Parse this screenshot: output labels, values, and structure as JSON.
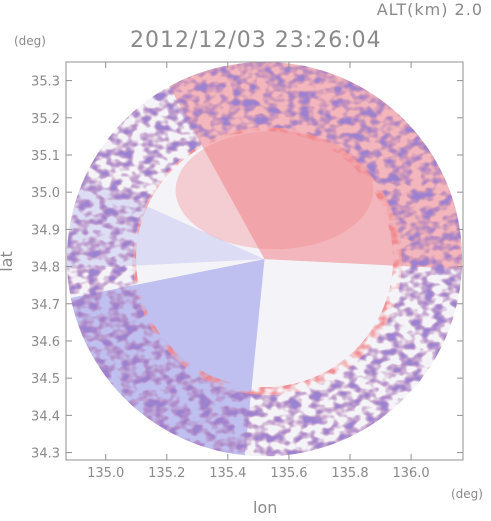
{
  "header": {
    "altitude_label": "ALT(km)  2.0",
    "timestamp": "2012/12/03 23:26:04"
  },
  "chart_data": {
    "type": "heatmap",
    "title": "2012/12/03 23:26:04",
    "subtitle": "ALT(km)  2.0",
    "xlabel": "lon",
    "ylabel": "lat",
    "x_unit": "(deg)",
    "y_unit": "(deg)",
    "xlim": [
      134.87,
      136.17
    ],
    "ylim": [
      34.28,
      35.35
    ],
    "x_ticks": [
      135.0,
      135.2,
      135.4,
      135.6,
      135.8,
      136.0
    ],
    "x_tick_labels": [
      "135.0",
      "135.2",
      "135.4",
      "135.6",
      "135.8",
      "136.0"
    ],
    "y_ticks": [
      34.3,
      34.4,
      34.5,
      34.6,
      34.7,
      34.8,
      34.9,
      35.0,
      35.1,
      35.2,
      35.3
    ],
    "y_tick_labels": [
      "34.3",
      "34.4",
      "34.5",
      "34.6",
      "34.7",
      "34.8",
      "34.9",
      "35.0",
      "35.1",
      "35.2",
      "35.3"
    ],
    "grid": false,
    "legend": "none",
    "radar_center": {
      "lon": 135.52,
      "lat": 34.82
    },
    "radar_coverage_radius_deg": {
      "lon": 0.647,
      "lat": 0.53
    },
    "colormap": {
      "negative": "#7f7fe6",
      "zero": "#f4f4f8",
      "positive": "#f0848a"
    },
    "field_regions": [
      {
        "label": "NE sector",
        "sign": "positive",
        "intensity": 0.55
      },
      {
        "label": "W band",
        "sign": "negative",
        "intensity": 0.2
      },
      {
        "label": "SW sector",
        "sign": "negative",
        "intensity": 0.45
      },
      {
        "label": "S sector",
        "sign": "near-zero",
        "intensity": 0.05
      }
    ]
  }
}
